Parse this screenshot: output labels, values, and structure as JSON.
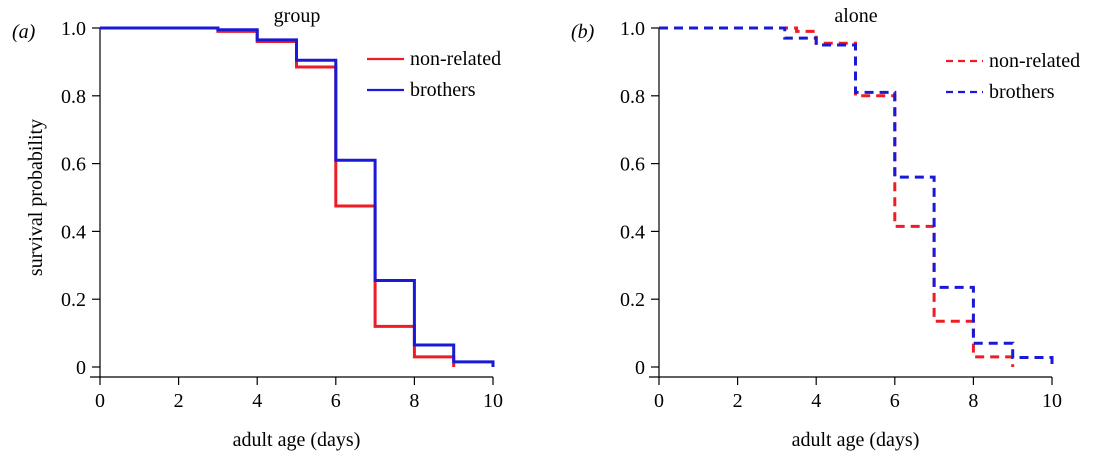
{
  "chart_data": [
    {
      "panel_label": "(a)",
      "type": "line",
      "step": true,
      "line_style": "solid",
      "title": "group",
      "xlabel": "adult age (days)",
      "ylabel": "survival probability",
      "xlim": [
        0,
        10
      ],
      "ylim": [
        0,
        1
      ],
      "xticks": [
        "0",
        "2",
        "4",
        "6",
        "8",
        "10"
      ],
      "yticks": [
        "0",
        "0.2",
        "0.4",
        "0.6",
        "0.8",
        "1.0"
      ],
      "grid": false,
      "legend_position": "top-right",
      "series": [
        {
          "name": "non-related",
          "color": "#ee1c25",
          "x": [
            0,
            3,
            4,
            5,
            6,
            7,
            8,
            9
          ],
          "y": [
            1.0,
            0.99,
            0.96,
            0.885,
            0.475,
            0.12,
            0.03,
            0.0
          ]
        },
        {
          "name": "brothers",
          "color": "#1a1ad6",
          "x": [
            0,
            3,
            4,
            5,
            6,
            7,
            8,
            9,
            10
          ],
          "y": [
            1.0,
            0.995,
            0.965,
            0.905,
            0.61,
            0.255,
            0.065,
            0.015,
            0.0
          ]
        }
      ]
    },
    {
      "panel_label": "(b)",
      "type": "line",
      "step": true,
      "line_style": "dashed",
      "title": "alone",
      "xlabel": "adult age (days)",
      "ylabel": "",
      "xlim": [
        0,
        10
      ],
      "ylim": [
        0,
        1
      ],
      "xticks": [
        "0",
        "2",
        "4",
        "6",
        "8",
        "10"
      ],
      "yticks": [
        "0",
        "0.2",
        "0.4",
        "0.6",
        "0.8",
        "1.0"
      ],
      "grid": false,
      "legend_position": "top-right",
      "series": [
        {
          "name": "non-related",
          "color": "#ee1c25",
          "x": [
            0,
            3.5,
            4,
            5,
            6,
            7,
            8,
            9
          ],
          "y": [
            1.0,
            0.99,
            0.955,
            0.8,
            0.415,
            0.135,
            0.03,
            0.0
          ]
        },
        {
          "name": "brothers",
          "color": "#1a1ad6",
          "x": [
            0,
            3.2,
            4,
            5,
            6,
            7,
            8,
            9,
            10
          ],
          "y": [
            1.0,
            0.97,
            0.95,
            0.81,
            0.56,
            0.235,
            0.07,
            0.028,
            0.0
          ]
        }
      ]
    }
  ]
}
